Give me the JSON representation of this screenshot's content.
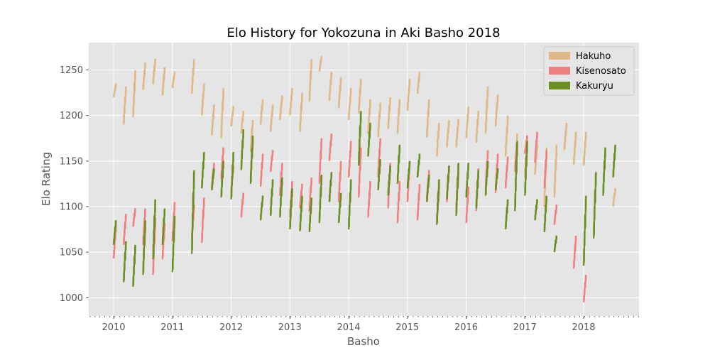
{
  "chart_data": {
    "type": "line",
    "title": "Elo History for Yokozuna in Aki Basho 2018",
    "xlabel": "Basho",
    "ylabel": "Elo Rating",
    "xlim": [
      2009.6,
      2018.95
    ],
    "ylim": [
      980,
      1280
    ],
    "xticks": [
      "2010",
      "2011",
      "2012",
      "2013",
      "2014",
      "2015",
      "2016",
      "2017",
      "2018"
    ],
    "yticks": [
      "1000",
      "1050",
      "1100",
      "1150",
      "1200",
      "1250"
    ],
    "grid": true,
    "legend_position": "top-right",
    "series_note": "each series is drawn as one vertical segment per 15-day basho tournament; ranges are [year_fraction, start_rating, end_rating]",
    "series": [
      {
        "name": "Hakuho",
        "color": "#deb887",
        "bashos": [
          [
            2010.0,
            1220,
            1235
          ],
          [
            2010.17,
            1190,
            1232
          ],
          [
            2010.33,
            1198,
            1250
          ],
          [
            2010.5,
            1228,
            1258
          ],
          [
            2010.67,
            1234,
            1262
          ],
          [
            2010.83,
            1222,
            1253
          ],
          [
            2011.0,
            1230,
            1248
          ],
          [
            2011.33,
            1224,
            1262
          ],
          [
            2011.5,
            1200,
            1235
          ],
          [
            2011.67,
            1178,
            1212
          ],
          [
            2011.83,
            1175,
            1230
          ],
          [
            2012.0,
            1188,
            1210
          ],
          [
            2012.17,
            1180,
            1205
          ],
          [
            2012.33,
            1160,
            1195
          ],
          [
            2012.5,
            1190,
            1218
          ],
          [
            2012.67,
            1182,
            1212
          ],
          [
            2012.83,
            1195,
            1222
          ],
          [
            2013.0,
            1200,
            1230
          ],
          [
            2013.17,
            1182,
            1225
          ],
          [
            2013.33,
            1215,
            1262
          ],
          [
            2013.5,
            1248,
            1265
          ],
          [
            2013.67,
            1216,
            1248
          ],
          [
            2013.83,
            1208,
            1242
          ],
          [
            2014.0,
            1195,
            1230
          ],
          [
            2014.17,
            1202,
            1240
          ],
          [
            2014.33,
            1180,
            1218
          ],
          [
            2014.5,
            1176,
            1214
          ],
          [
            2014.67,
            1185,
            1220
          ],
          [
            2014.83,
            1180,
            1218
          ],
          [
            2015.0,
            1205,
            1240
          ],
          [
            2015.17,
            1224,
            1248
          ],
          [
            2015.33,
            1176,
            1218
          ],
          [
            2015.5,
            1155,
            1192
          ],
          [
            2015.67,
            1165,
            1195
          ],
          [
            2015.83,
            1165,
            1196
          ],
          [
            2016.0,
            1175,
            1210
          ],
          [
            2016.17,
            1170,
            1205
          ],
          [
            2016.33,
            1180,
            1232
          ],
          [
            2016.5,
            1188,
            1223
          ],
          [
            2016.67,
            1155,
            1200
          ],
          [
            2016.83,
            1140,
            1180
          ],
          [
            2017.0,
            1132,
            1176
          ],
          [
            2017.17,
            1135,
            1168
          ],
          [
            2017.33,
            1100,
            1165
          ],
          [
            2017.5,
            1110,
            1168
          ],
          [
            2017.67,
            1162,
            1192
          ],
          [
            2017.83,
            1146,
            1182
          ],
          [
            2018.0,
            1145,
            1182
          ],
          [
            2018.5,
            1100,
            1120
          ]
        ]
      },
      {
        "name": "Kisenosato",
        "color": "#f08080",
        "bashos": [
          [
            2010.0,
            1043,
            1080
          ],
          [
            2010.17,
            1058,
            1092
          ],
          [
            2010.33,
            1078,
            1098
          ],
          [
            2010.5,
            1058,
            1098
          ],
          [
            2010.67,
            1025,
            1088
          ],
          [
            2010.83,
            1042,
            1082
          ],
          [
            2011.0,
            1062,
            1105
          ],
          [
            2011.33,
            1065,
            1102
          ],
          [
            2011.5,
            1060,
            1110
          ],
          [
            2011.67,
            1120,
            1148
          ],
          [
            2011.83,
            1130,
            1165
          ],
          [
            2012.0,
            1115,
            1145
          ],
          [
            2012.17,
            1088,
            1115
          ],
          [
            2012.33,
            1130,
            1172
          ],
          [
            2012.5,
            1122,
            1158
          ],
          [
            2012.67,
            1138,
            1162
          ],
          [
            2012.83,
            1112,
            1148
          ],
          [
            2013.0,
            1088,
            1128
          ],
          [
            2013.17,
            1098,
            1125
          ],
          [
            2013.33,
            1095,
            1132
          ],
          [
            2013.5,
            1125,
            1175
          ],
          [
            2013.67,
            1150,
            1180
          ],
          [
            2013.83,
            1105,
            1150
          ],
          [
            2014.0,
            1132,
            1172
          ],
          [
            2014.17,
            1110,
            1165
          ],
          [
            2014.33,
            1088,
            1128
          ],
          [
            2014.5,
            1132,
            1175
          ],
          [
            2014.67,
            1098,
            1148
          ],
          [
            2014.83,
            1082,
            1128
          ],
          [
            2015.0,
            1105,
            1150
          ],
          [
            2015.17,
            1085,
            1125
          ],
          [
            2015.33,
            1108,
            1140
          ],
          [
            2015.5,
            1082,
            1122
          ],
          [
            2015.67,
            1105,
            1145
          ],
          [
            2015.83,
            1098,
            1138
          ],
          [
            2016.0,
            1082,
            1122
          ],
          [
            2016.17,
            1095,
            1142
          ],
          [
            2016.33,
            1118,
            1162
          ],
          [
            2016.5,
            1115,
            1158
          ],
          [
            2016.67,
            1120,
            1155
          ],
          [
            2016.83,
            1138,
            1170
          ],
          [
            2017.0,
            1158,
            1178
          ],
          [
            2017.17,
            1148,
            1182
          ],
          [
            2017.33,
            1120,
            1162
          ],
          [
            2017.5,
            1080,
            1102
          ],
          [
            2017.83,
            1032,
            1068
          ],
          [
            2018.0,
            995,
            1025
          ]
        ]
      },
      {
        "name": "Kakuryu",
        "color": "#6b8e23",
        "bashos": [
          [
            2010.0,
            1058,
            1085
          ],
          [
            2010.17,
            1017,
            1062
          ],
          [
            2010.33,
            1012,
            1058
          ],
          [
            2010.5,
            1025,
            1085
          ],
          [
            2010.67,
            1042,
            1108
          ],
          [
            2010.83,
            1058,
            1098
          ],
          [
            2011.0,
            1028,
            1090
          ],
          [
            2011.33,
            1048,
            1140
          ],
          [
            2011.5,
            1120,
            1160
          ],
          [
            2011.67,
            1118,
            1142
          ],
          [
            2011.83,
            1110,
            1150
          ],
          [
            2012.0,
            1108,
            1160
          ],
          [
            2012.17,
            1140,
            1185
          ],
          [
            2012.33,
            1125,
            1178
          ],
          [
            2012.5,
            1085,
            1112
          ],
          [
            2012.67,
            1090,
            1130
          ],
          [
            2012.83,
            1088,
            1132
          ],
          [
            2013.0,
            1075,
            1120
          ],
          [
            2013.17,
            1073,
            1112
          ],
          [
            2013.33,
            1072,
            1110
          ],
          [
            2013.5,
            1082,
            1135
          ],
          [
            2013.67,
            1105,
            1138
          ],
          [
            2013.83,
            1082,
            1115
          ],
          [
            2014.0,
            1075,
            1130
          ],
          [
            2014.17,
            1145,
            1205
          ],
          [
            2014.33,
            1155,
            1192
          ],
          [
            2014.5,
            1118,
            1152
          ],
          [
            2014.67,
            1112,
            1145
          ],
          [
            2014.83,
            1125,
            1168
          ],
          [
            2015.0,
            1120,
            1150
          ],
          [
            2015.17,
            1132,
            1158
          ],
          [
            2015.33,
            1105,
            1135
          ],
          [
            2015.5,
            1080,
            1130
          ],
          [
            2015.67,
            1108,
            1145
          ],
          [
            2015.83,
            1090,
            1148
          ],
          [
            2016.0,
            1110,
            1148
          ],
          [
            2016.17,
            1098,
            1140
          ],
          [
            2016.33,
            1112,
            1150
          ],
          [
            2016.5,
            1118,
            1142
          ],
          [
            2016.67,
            1075,
            1108
          ],
          [
            2016.83,
            1095,
            1172
          ],
          [
            2017.0,
            1112,
            1172
          ],
          [
            2017.17,
            1085,
            1108
          ],
          [
            2017.33,
            1072,
            1112
          ],
          [
            2017.5,
            1050,
            1068
          ],
          [
            2018.0,
            1035,
            1112
          ],
          [
            2018.17,
            1065,
            1138
          ],
          [
            2018.33,
            1112,
            1165
          ],
          [
            2018.5,
            1132,
            1168
          ]
        ]
      }
    ]
  }
}
